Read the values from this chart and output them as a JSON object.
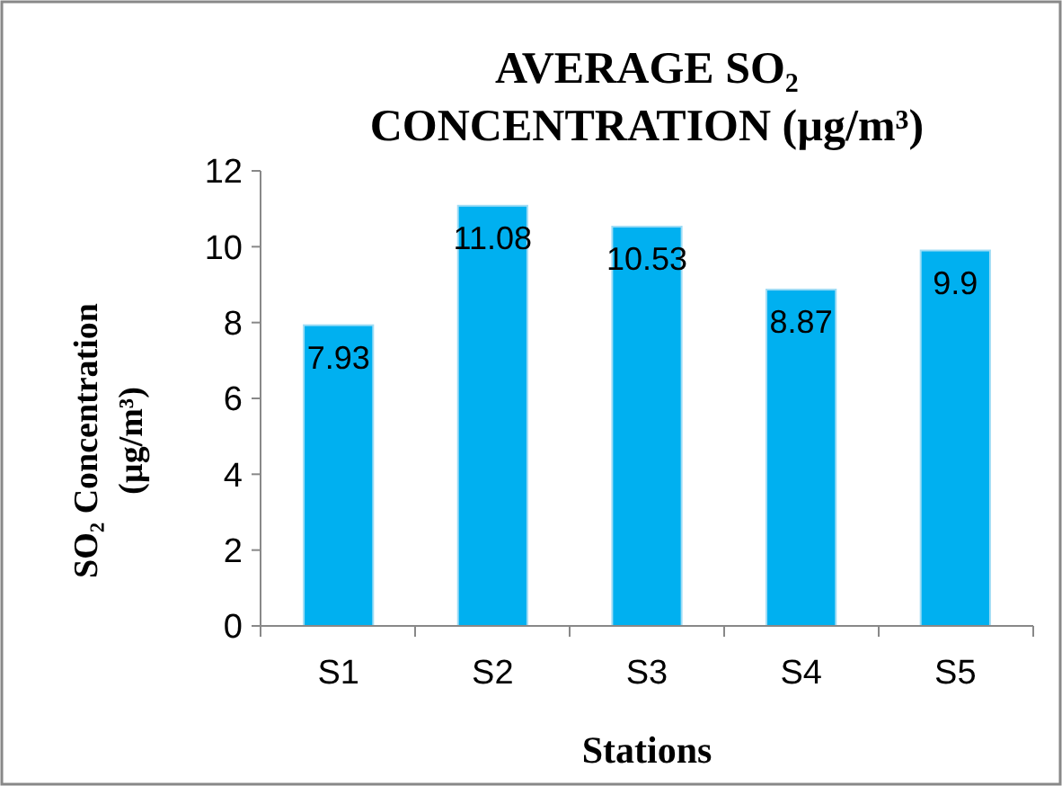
{
  "chart_data": {
    "type": "bar",
    "title": "AVERAGE SO₂ CONCENTRATION (µg/m³)",
    "xlabel": "Stations",
    "ylabel": "SO₂ Concentration (µg/m³)",
    "categories": [
      "S1",
      "S2",
      "S3",
      "S4",
      "S5"
    ],
    "values": [
      7.93,
      11.08,
      10.53,
      8.87,
      9.9
    ],
    "color": "#00b0f0",
    "ylim": [
      0,
      12
    ],
    "yticks": [
      0,
      2,
      4,
      6,
      8,
      10,
      12
    ],
    "grid": false,
    "data_labels": true
  }
}
